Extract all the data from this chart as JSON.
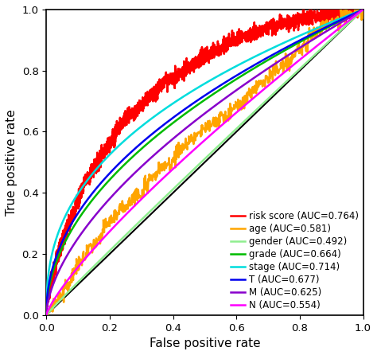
{
  "title": "",
  "xlabel": "False positive rate",
  "ylabel": "True positive rate",
  "xlim": [
    0,
    1
  ],
  "ylim": [
    0,
    1
  ],
  "xticks": [
    0.0,
    0.2,
    0.4,
    0.6,
    0.8,
    1.0
  ],
  "yticks": [
    0.0,
    0.2,
    0.4,
    0.6,
    0.8,
    1.0
  ],
  "curves": [
    {
      "label": "risk score (AUC=0.764)",
      "color": "#FF0000",
      "auc": 0.764,
      "noisy": true,
      "n": 300
    },
    {
      "label": "age (AUC=0.581)",
      "color": "#FFA500",
      "auc": 0.581,
      "noisy": true,
      "n": 80
    },
    {
      "label": "gender (AUC=0.492)",
      "color": "#90EE90",
      "auc": 0.492,
      "noisy": false,
      "n": 5
    },
    {
      "label": "grade (AUC=0.664)",
      "color": "#00BB00",
      "auc": 0.664,
      "noisy": false,
      "n": 5
    },
    {
      "label": "stage (AUC=0.714)",
      "color": "#00DDDD",
      "auc": 0.714,
      "noisy": false,
      "n": 5
    },
    {
      "label": "T (AUC=0.677)",
      "color": "#0000EE",
      "auc": 0.677,
      "noisy": false,
      "n": 5
    },
    {
      "label": "M (AUC=0.625)",
      "color": "#8800CC",
      "auc": 0.625,
      "noisy": false,
      "n": 5
    },
    {
      "label": "N (AUC=0.554)",
      "color": "#FF00FF",
      "auc": 0.554,
      "noisy": false,
      "n": 5
    }
  ],
  "background_color": "#FFFFFF",
  "legend_fontsize": 8.5,
  "axis_fontsize": 11,
  "tick_fontsize": 9.5
}
